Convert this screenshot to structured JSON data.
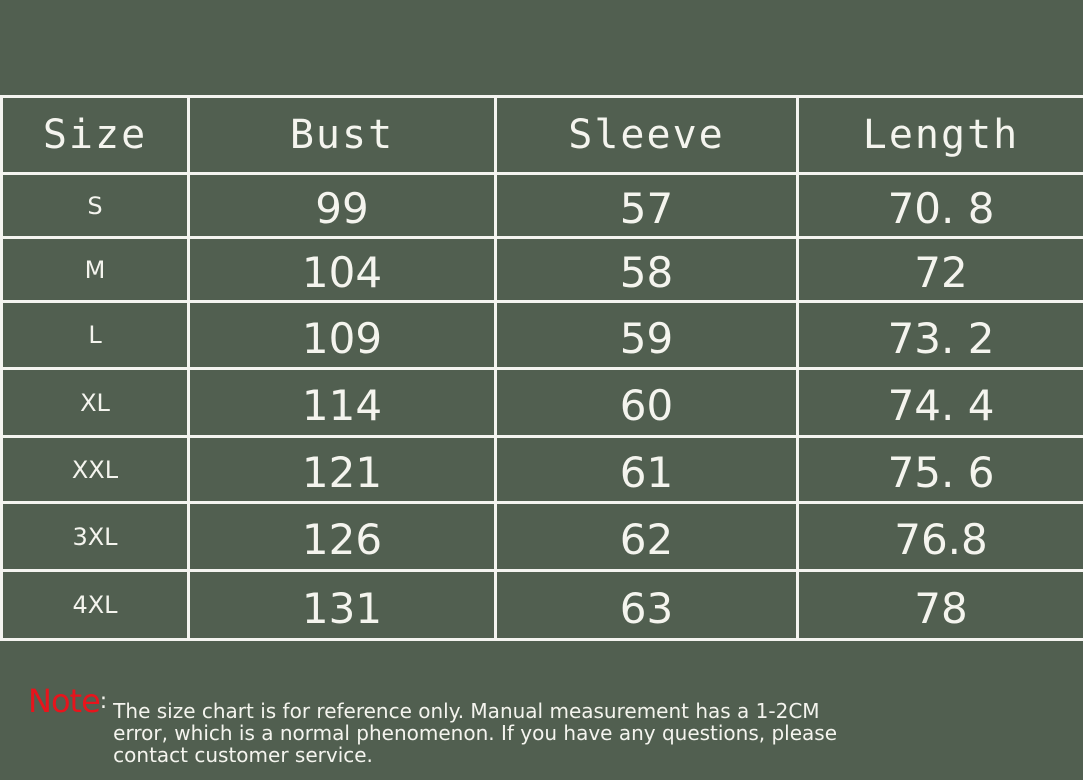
{
  "table": {
    "headers": [
      "Size",
      "Bust",
      "Sleeve",
      "Length"
    ],
    "rows": [
      [
        "S",
        "99",
        "57",
        "70. 8"
      ],
      [
        "M",
        "104",
        "58",
        "72"
      ],
      [
        "L",
        "109",
        "59",
        "73. 2"
      ],
      [
        "XL",
        "114",
        "60",
        "74. 4"
      ],
      [
        "XXL",
        "121",
        "61",
        "75. 6"
      ],
      [
        "3XL",
        "126",
        "62",
        "76.8"
      ],
      [
        "4XL",
        "131",
        "63",
        "78"
      ]
    ]
  },
  "note": {
    "label": "Note",
    "colon": ":",
    "text": "The size chart is for reference only. Manual measurement has a 1-2CM error, which is a normal phenomenon. If you have any questions, please contact customer service.",
    "label_color": "#e8141c"
  },
  "colors": {
    "background": "#515f50",
    "lines": "#f4f4f0",
    "text": "#f4f4ee"
  }
}
